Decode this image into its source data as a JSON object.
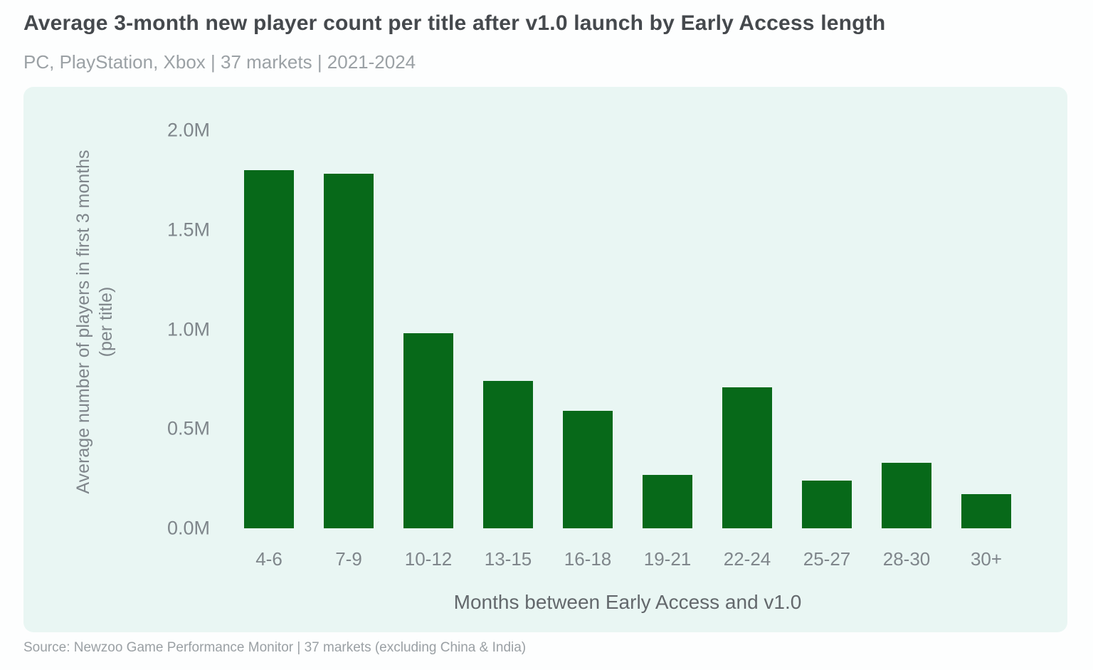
{
  "header": {
    "title": "Average 3-month new player count per title after v1.0 launch by Early Access length",
    "subtitle": "PC, PlayStation, Xbox | 37 markets | 2021-2024"
  },
  "chart_data": {
    "type": "bar",
    "title": "Average 3-month new player count per title after v1.0 launch by Early Access length",
    "subtitle": "PC, PlayStation, Xbox | 37 markets | 2021-2024",
    "categories": [
      "4-6",
      "7-9",
      "10-12",
      "13-15",
      "16-18",
      "19-21",
      "22-24",
      "25-27",
      "28-30",
      "30+"
    ],
    "values": [
      1.8,
      1.78,
      0.98,
      0.74,
      0.59,
      0.27,
      0.71,
      0.24,
      0.33,
      0.17
    ],
    "unit": "M players",
    "xlabel": "Months between Early Access and v1.0",
    "ylabel": "Average number of players in first 3 months (per title)",
    "ylabel_line1": "Average number of players in first 3 months",
    "ylabel_line2": "(per title)",
    "ylim": [
      0,
      2.0
    ],
    "yticks": [
      "2.0M",
      "1.5M",
      "1.0M",
      "0.5M",
      "0.0M"
    ],
    "ytick_values": [
      2.0,
      1.5,
      1.0,
      0.5,
      0.0
    ],
    "grid": false,
    "legend": false,
    "bar_color": "#076919",
    "panel_bg": "#e9f6f3"
  },
  "footer": {
    "source": "Source: Newzoo Game Performance Monitor | 37 markets (excluding China & India)"
  }
}
